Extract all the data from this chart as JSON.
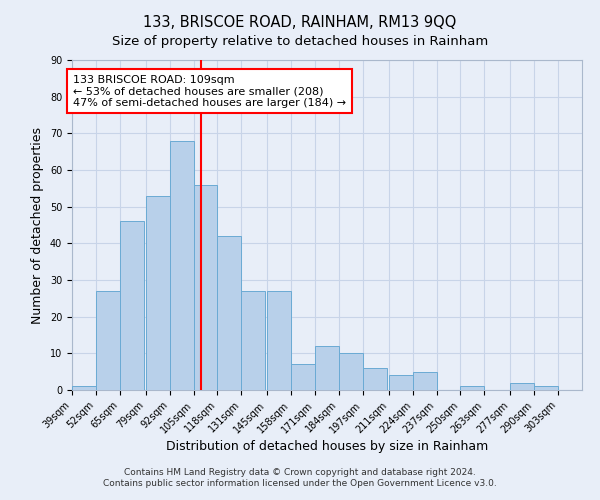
{
  "title": "133, BRISCOE ROAD, RAINHAM, RM13 9QQ",
  "subtitle": "Size of property relative to detached houses in Rainham",
  "xlabel": "Distribution of detached houses by size in Rainham",
  "ylabel": "Number of detached properties",
  "bin_labels": [
    "39sqm",
    "52sqm",
    "65sqm",
    "79sqm",
    "92sqm",
    "105sqm",
    "118sqm",
    "131sqm",
    "145sqm",
    "158sqm",
    "171sqm",
    "184sqm",
    "197sqm",
    "211sqm",
    "224sqm",
    "237sqm",
    "250sqm",
    "263sqm",
    "277sqm",
    "290sqm",
    "303sqm"
  ],
  "bin_edges": [
    39,
    52,
    65,
    79,
    92,
    105,
    118,
    131,
    145,
    158,
    171,
    184,
    197,
    211,
    224,
    237,
    250,
    263,
    277,
    290,
    303
  ],
  "counts": [
    1,
    27,
    46,
    53,
    68,
    56,
    42,
    27,
    27,
    7,
    12,
    10,
    6,
    4,
    5,
    0,
    1,
    0,
    2,
    1,
    0
  ],
  "bar_color": "#b8d0ea",
  "bar_edge_color": "#6aaad4",
  "property_line_x": 109,
  "property_line_color": "red",
  "annotation_text": "133 BRISCOE ROAD: 109sqm\n← 53% of detached houses are smaller (208)\n47% of semi-detached houses are larger (184) →",
  "annotation_box_color": "white",
  "annotation_box_edge_color": "red",
  "ylim": [
    0,
    90
  ],
  "yticks": [
    0,
    10,
    20,
    30,
    40,
    50,
    60,
    70,
    80,
    90
  ],
  "grid_color": "#c8d4e8",
  "background_color": "#e8eef8",
  "footer_line1": "Contains HM Land Registry data © Crown copyright and database right 2024.",
  "footer_line2": "Contains public sector information licensed under the Open Government Licence v3.0.",
  "title_fontsize": 10.5,
  "subtitle_fontsize": 9.5,
  "axis_label_fontsize": 9,
  "tick_fontsize": 7,
  "annotation_fontsize": 8,
  "footer_fontsize": 6.5
}
